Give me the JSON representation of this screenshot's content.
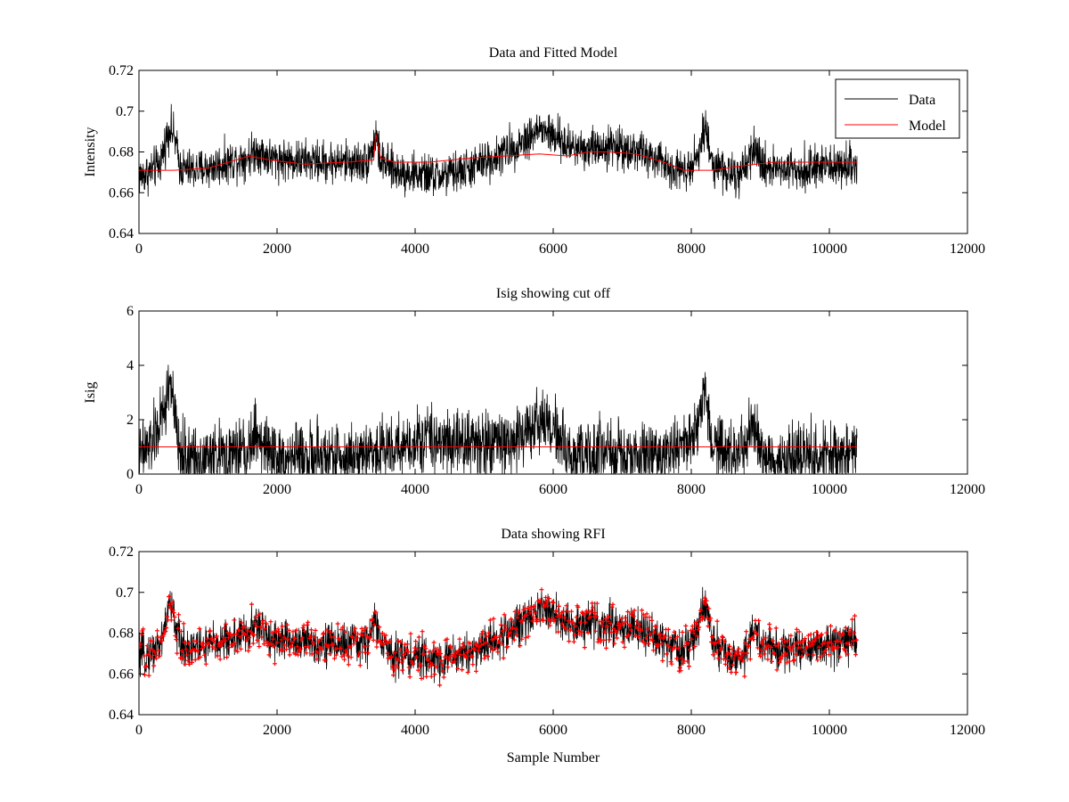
{
  "chart_data": [
    {
      "type": "line",
      "title": "Data and Fitted Model",
      "xlabel": "",
      "ylabel": "Intensity",
      "xlim": [
        0,
        12000
      ],
      "ylim": [
        0.64,
        0.72
      ],
      "xticks": [
        0,
        2000,
        4000,
        6000,
        8000,
        10000,
        12000
      ],
      "yticks": [
        0.64,
        0.66,
        0.68,
        0.7,
        0.72
      ],
      "xtick_labels": [
        "0",
        "2000",
        "4000",
        "6000",
        "8000",
        "10000",
        "12000"
      ],
      "ytick_labels": [
        "0.64",
        "0.66",
        "0.68",
        "0.7",
        "0.72"
      ],
      "legend": {
        "position": "top-right",
        "entries": [
          "Data",
          "Model"
        ]
      },
      "series": [
        {
          "name": "Data",
          "color": "#000000",
          "style": "noisy-line",
          "x": [
            0,
            150,
            300,
            380,
            450,
            520,
            600,
            800,
            1000,
            1300,
            1600,
            1700,
            1900,
            2200,
            2600,
            3000,
            3300,
            3400,
            3430,
            3500,
            3700,
            4000,
            4400,
            4800,
            5200,
            5500,
            5800,
            6000,
            6200,
            6500,
            6800,
            7200,
            7600,
            7900,
            8100,
            8200,
            8300,
            8500,
            8700,
            8850,
            8920,
            9000,
            9300,
            9700,
            10100,
            10400
          ],
          "values": [
            0.668,
            0.67,
            0.674,
            0.684,
            0.693,
            0.686,
            0.672,
            0.671,
            0.672,
            0.675,
            0.678,
            0.681,
            0.677,
            0.676,
            0.675,
            0.675,
            0.675,
            0.684,
            0.689,
            0.675,
            0.671,
            0.669,
            0.668,
            0.672,
            0.678,
            0.684,
            0.691,
            0.688,
            0.683,
            0.682,
            0.683,
            0.681,
            0.674,
            0.671,
            0.679,
            0.692,
            0.676,
            0.67,
            0.667,
            0.675,
            0.684,
            0.674,
            0.672,
            0.672,
            0.673,
            0.674
          ],
          "noise": 0.005
        },
        {
          "name": "Model",
          "color": "#ff0000",
          "style": "line",
          "x": [
            0,
            500,
            1000,
            1600,
            1900,
            2400,
            3000,
            3400,
            3430,
            3500,
            3700,
            4200,
            4800,
            5300,
            5800,
            6200,
            6500,
            6800,
            7200,
            7600,
            7900,
            8300,
            8700,
            9200,
            10400
          ],
          "values": [
            0.671,
            0.671,
            0.672,
            0.678,
            0.676,
            0.674,
            0.675,
            0.676,
            0.689,
            0.677,
            0.675,
            0.675,
            0.677,
            0.678,
            0.679,
            0.678,
            0.68,
            0.68,
            0.679,
            0.675,
            0.671,
            0.671,
            0.673,
            0.675,
            0.675
          ]
        }
      ]
    },
    {
      "type": "line",
      "title": "Isig showing cut off",
      "xlabel": "",
      "ylabel": "Isig",
      "xlim": [
        0,
        12000
      ],
      "ylim": [
        0,
        6
      ],
      "xticks": [
        0,
        2000,
        4000,
        6000,
        8000,
        10000,
        12000
      ],
      "yticks": [
        0,
        2,
        4,
        6
      ],
      "xtick_labels": [
        "0",
        "2000",
        "4000",
        "6000",
        "8000",
        "10000",
        "12000"
      ],
      "ytick_labels": [
        "0",
        "2",
        "4",
        "6"
      ],
      "series": [
        {
          "name": "Isig",
          "color": "#000000",
          "style": "noisy-line",
          "x": [
            0,
            200,
            380,
            450,
            520,
            600,
            1000,
            1600,
            1700,
            2000,
            3000,
            3400,
            3800,
            4200,
            4600,
            5000,
            5500,
            5800,
            6000,
            6200,
            7000,
            7800,
            8100,
            8200,
            8300,
            8600,
            8900,
            9000,
            9500,
            10400
          ],
          "values": [
            0.6,
            1.2,
            2.4,
            3.6,
            2.0,
            0.6,
            0.6,
            0.8,
            1.4,
            0.6,
            0.6,
            0.9,
            1.1,
            1.3,
            1.3,
            1.1,
            1.2,
            2.2,
            1.6,
            0.6,
            0.7,
            0.7,
            1.8,
            3.2,
            1.0,
            0.6,
            1.6,
            0.6,
            0.6,
            0.6
          ],
          "noise": 0.6
        },
        {
          "name": "cut off",
          "color": "#ff0000",
          "style": "line",
          "x": [
            0,
            10400
          ],
          "values": [
            1.0,
            1.0
          ]
        }
      ]
    },
    {
      "type": "scatter",
      "title": "Data showing RFI",
      "xlabel": "Sample Number",
      "ylabel": "",
      "xlim": [
        0,
        12000
      ],
      "ylim": [
        0.64,
        0.72
      ],
      "xticks": [
        0,
        2000,
        4000,
        6000,
        8000,
        10000,
        12000
      ],
      "yticks": [
        0.64,
        0.66,
        0.68,
        0.7,
        0.72
      ],
      "xtick_labels": [
        "0",
        "2000",
        "4000",
        "6000",
        "8000",
        "10000",
        "12000"
      ],
      "ytick_labels": [
        "0.64",
        "0.66",
        "0.68",
        "0.7",
        "0.72"
      ],
      "series": [
        {
          "name": "Data",
          "color": "#000000",
          "style": "noisy-line",
          "x": [
            0,
            150,
            300,
            380,
            450,
            520,
            600,
            800,
            1000,
            1300,
            1600,
            1700,
            1900,
            2200,
            2600,
            3000,
            3300,
            3400,
            3430,
            3500,
            3700,
            4000,
            4400,
            4800,
            5200,
            5500,
            5800,
            6000,
            6200,
            6500,
            6800,
            7200,
            7600,
            7900,
            8100,
            8200,
            8300,
            8500,
            8700,
            8850,
            8920,
            9000,
            9300,
            9700,
            10100,
            10400
          ],
          "values": [
            0.668,
            0.67,
            0.674,
            0.684,
            0.695,
            0.686,
            0.674,
            0.673,
            0.674,
            0.677,
            0.68,
            0.684,
            0.678,
            0.676,
            0.675,
            0.675,
            0.675,
            0.684,
            0.688,
            0.674,
            0.67,
            0.668,
            0.667,
            0.671,
            0.677,
            0.684,
            0.693,
            0.69,
            0.684,
            0.684,
            0.685,
            0.682,
            0.675,
            0.671,
            0.681,
            0.695,
            0.676,
            0.669,
            0.666,
            0.675,
            0.685,
            0.674,
            0.672,
            0.673,
            0.675,
            0.677
          ],
          "noise": 0.005
        },
        {
          "name": "RFI",
          "color": "#ff0000",
          "style": "markers",
          "marker": "+",
          "same_as_series": 0
        }
      ]
    }
  ]
}
